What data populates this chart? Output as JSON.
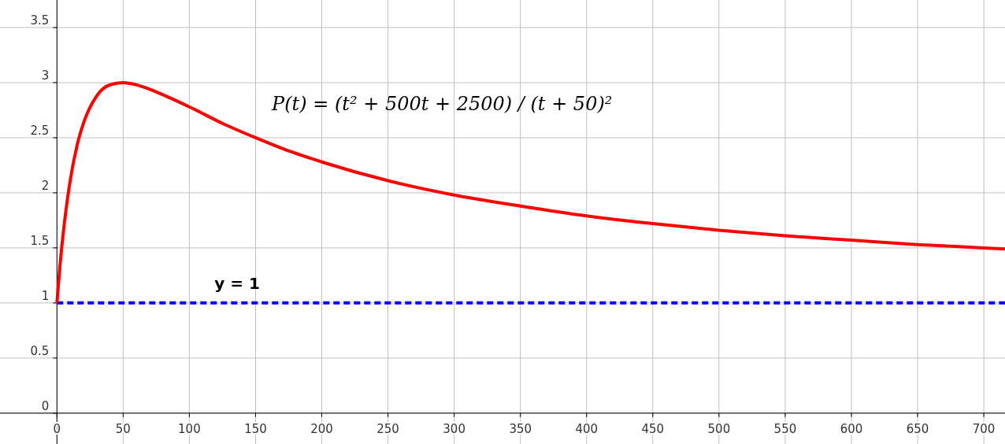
{
  "chart_data": {
    "type": "line",
    "x": [
      0,
      2,
      5,
      10,
      15,
      20,
      30,
      40,
      50,
      60,
      70,
      80,
      100,
      125,
      150,
      175,
      200,
      250,
      300,
      350,
      400,
      450,
      500,
      550,
      600,
      650,
      700,
      716
    ],
    "series": [
      {
        "color": "#ff0000",
        "values": [
          1,
          1.3,
          1.66,
          2.11,
          2.42,
          2.63,
          2.88,
          2.98,
          3,
          2.98,
          2.94,
          2.89,
          2.78,
          2.63,
          2.5,
          2.38,
          2.28,
          2.11,
          1.98,
          1.88,
          1.79,
          1.72,
          1.66,
          1.61,
          1.57,
          1.53,
          1.5,
          1.49
        ]
      }
    ],
    "xlim": [
      -43,
      716
    ],
    "ylim": [
      -0.28,
      3.75
    ],
    "xticks": [
      0,
      50,
      100,
      150,
      200,
      250,
      300,
      350,
      400,
      450,
      500,
      550,
      600,
      650,
      700
    ],
    "yticks": [
      0,
      0.5,
      1,
      1.5,
      2,
      2.5,
      3,
      3.5
    ],
    "grid": true,
    "marker": "none",
    "line_style": "solid",
    "ref_lines": [
      {
        "axis": "y",
        "value": 1,
        "label": "y = 1",
        "color": "#0000ff",
        "line_style": "dashed"
      }
    ],
    "annotations": [
      "P(t) = (t² + 500t + 2500) / (t + 50)²"
    ]
  }
}
